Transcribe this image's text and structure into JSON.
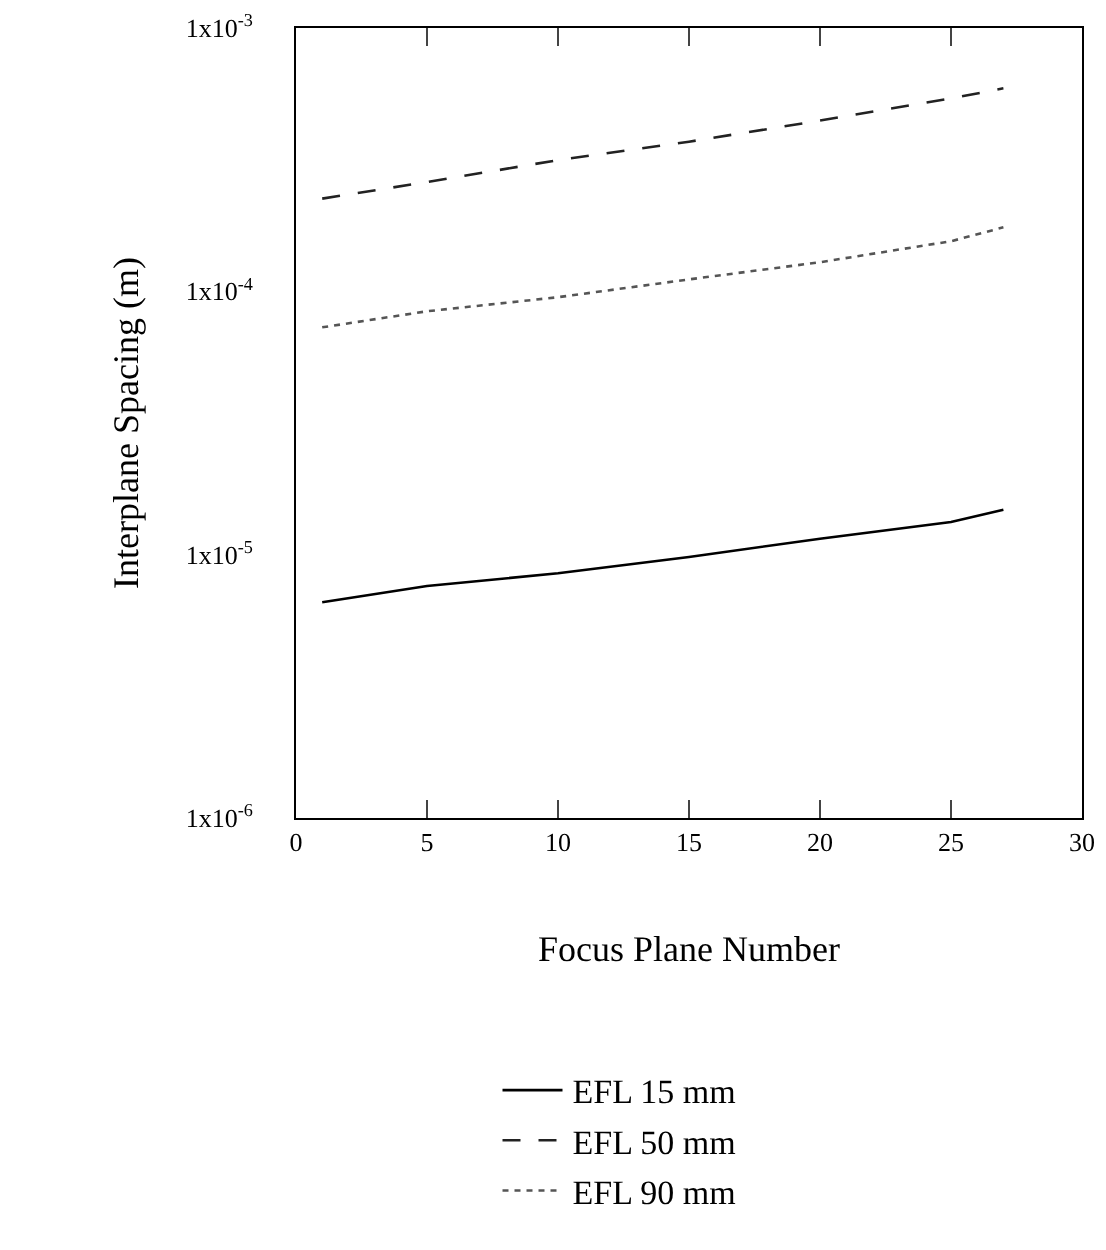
{
  "chart_data": {
    "type": "line",
    "xlabel": "Focus Plane Number",
    "ylabel": "Interplane Spacing (m)",
    "log": "y",
    "xlim": [
      0,
      30
    ],
    "xticks": [
      0,
      5,
      10,
      15,
      20,
      25,
      30
    ],
    "ylim": [
      1e-06,
      0.001
    ],
    "yticks": [
      {
        "value": 1e-06,
        "label": "1x10$^{-6}$"
      },
      {
        "value": 1e-05,
        "label": "1x10$^{-5}$"
      },
      {
        "value": 0.0001,
        "label": "1x10$^{-4}$"
      },
      {
        "value": 0.001,
        "label": "1x10$^{-3}$"
      }
    ],
    "grid": false,
    "legend": "bottom",
    "marker": "none",
    "x": [
      1,
      5,
      10,
      15,
      20,
      25,
      27
    ],
    "series": [
      {
        "name": "EFL 15 mm",
        "color": "#000000",
        "line_style": "solid",
        "values": [
          6.6e-06,
          7.6e-06,
          8.5e-06,
          9.8e-06,
          1.15e-05,
          1.33e-05,
          1.48e-05
        ]
      },
      {
        "name": "EFL 50 mm",
        "color": "#222222",
        "line_style": "dashed",
        "values": [
          0.000225,
          0.00026,
          0.000315,
          0.00037,
          0.000445,
          0.00054,
          0.00059
        ]
      },
      {
        "name": "EFL 90 mm",
        "color": "#555555",
        "line_style": "dotted",
        "values": [
          7.3e-05,
          8.4e-05,
          9.5e-05,
          0.000111,
          0.000129,
          0.000155,
          0.000175
        ]
      }
    ]
  }
}
